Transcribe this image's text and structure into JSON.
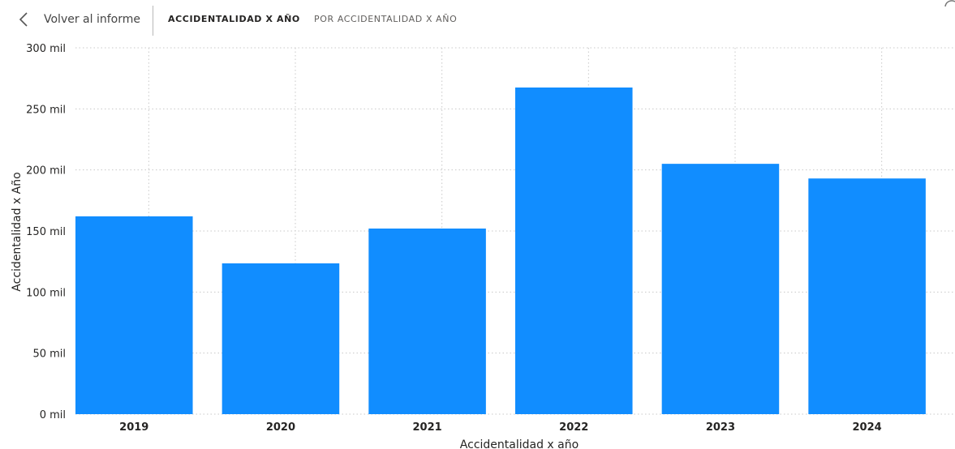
{
  "toolbar": {
    "back_label": "Volver al informe",
    "tabs": [
      {
        "label": "ACCIDENTALIDAD X AÑO",
        "active": true
      },
      {
        "label": "POR ACCIDENTALIDAD X AÑO",
        "active": false
      }
    ]
  },
  "icons": {
    "back": "chevron-left-icon"
  },
  "colors": {
    "bar": "#118dff",
    "grid": "#c8c8c8"
  },
  "chart_data": {
    "type": "bar",
    "categories": [
      "2019",
      "2020",
      "2021",
      "2022",
      "2023",
      "2024"
    ],
    "series": [
      {
        "values": [
          162000,
          123500,
          152000,
          267500,
          205000,
          193000
        ]
      }
    ],
    "xlabel": "Accidentalidad x año",
    "ylabel": "Accidentalidad x Año",
    "ylim": [
      0,
      300000
    ],
    "yticks": [
      0,
      50000,
      100000,
      150000,
      200000,
      250000,
      300000
    ],
    "ytick_labels": [
      "0 mil",
      "50 mil",
      "100 mil",
      "150 mil",
      "200 mil",
      "250 mil",
      "300 mil"
    ],
    "grid": true,
    "legend": "none"
  }
}
